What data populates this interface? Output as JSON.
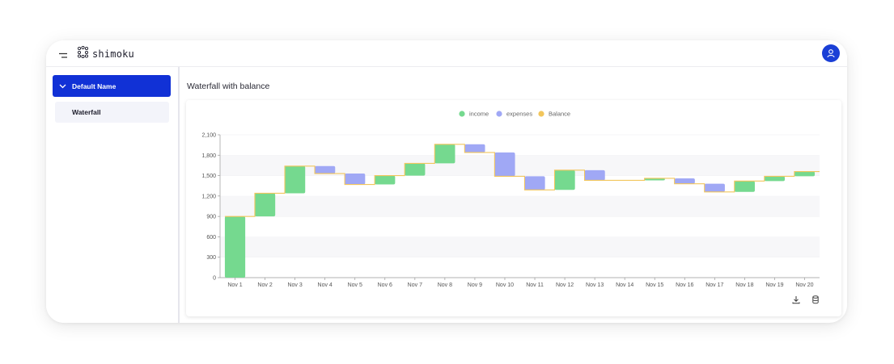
{
  "app": {
    "logo_text": "shimoku",
    "icons": {
      "menu": "menu-icon",
      "logo": "shimoku-logo-icon",
      "user": "user-icon"
    },
    "accent_color": "#1131d6"
  },
  "sidebar": {
    "group_label": "Default Name",
    "group_icon": "chevron-down-icon",
    "items": [
      {
        "label": "Waterfall"
      }
    ]
  },
  "main": {
    "title": "Waterfall with balance",
    "toolbar": {
      "download_icon": "download-icon",
      "data_icon": "database-icon"
    }
  },
  "chart_data": {
    "type": "waterfall",
    "title": "",
    "xlabel": "",
    "ylabel": "",
    "legend": {
      "placement": "top-center",
      "entries": [
        {
          "name": "income",
          "color": "#75d98f"
        },
        {
          "name": "expenses",
          "color": "#a0a8f5"
        },
        {
          "name": "Balance",
          "color": "#f2c65c"
        }
      ]
    },
    "categories": [
      "Nov 1",
      "Nov 2",
      "Nov 3",
      "Nov 4",
      "Nov 5",
      "Nov 6",
      "Nov 7",
      "Nov 8",
      "Nov 9",
      "Nov 10",
      "Nov 11",
      "Nov 12",
      "Nov 13",
      "Nov 14",
      "Nov 15",
      "Nov 16",
      "Nov 17",
      "Nov 18",
      "Nov 19",
      "Nov 20"
    ],
    "series": [
      {
        "name": "income",
        "values": [
          900,
          340,
          400,
          0,
          0,
          130,
          180,
          280,
          0,
          0,
          0,
          290,
          0,
          0,
          30,
          0,
          0,
          160,
          70,
          70
        ]
      },
      {
        "name": "expenses",
        "values": [
          0,
          0,
          0,
          110,
          160,
          0,
          0,
          0,
          120,
          350,
          200,
          0,
          150,
          0,
          0,
          80,
          120,
          0,
          0,
          0
        ]
      },
      {
        "name": "Balance",
        "values": [
          900,
          1240,
          1640,
          1530,
          1370,
          1500,
          1680,
          1960,
          1840,
          1490,
          1290,
          1580,
          1430,
          1430,
          1460,
          1380,
          1260,
          1420,
          1490,
          1560
        ]
      }
    ],
    "yticks": [
      0,
      300,
      600,
      900,
      1200,
      1500,
      1800,
      2100
    ],
    "ytick_labels": [
      "0",
      "300",
      "600",
      "900",
      "1,200",
      "1,500",
      "1,800",
      "2,100"
    ],
    "ylim": [
      0,
      2100
    ],
    "grid": "horizontal bands"
  }
}
